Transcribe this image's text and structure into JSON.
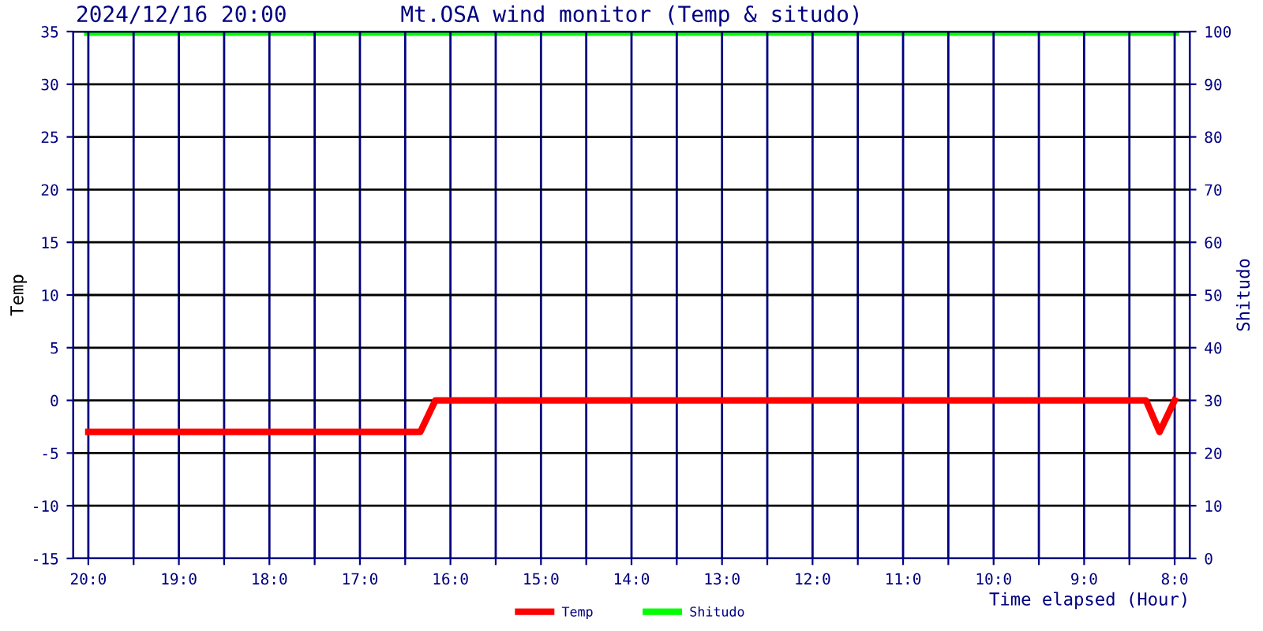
{
  "chart_data": {
    "type": "line",
    "title": "Mt.OSA wind monitor (Temp & situdo)",
    "subtitle": "2024/12/16 20:00",
    "xlabel": "Time elapsed (Hour)",
    "ylabel": "Temp",
    "y2label": "Shitudo",
    "xlim": [
      "2024-12-16T20:10",
      "2024-12-16T07:50"
    ],
    "xticks": [
      {
        "value": "2024-12-16T20:00",
        "label": "20:0"
      },
      {
        "value": "2024-12-16T19:30",
        "label": null
      },
      {
        "value": "2024-12-16T19:00",
        "label": "19:0"
      },
      {
        "value": "2024-12-16T18:30",
        "label": null
      },
      {
        "value": "2024-12-16T18:00",
        "label": "18:0"
      },
      {
        "value": "2024-12-16T17:30",
        "label": null
      },
      {
        "value": "2024-12-16T17:00",
        "label": "17:0"
      },
      {
        "value": "2024-12-16T16:30",
        "label": null
      },
      {
        "value": "2024-12-16T16:00",
        "label": "16:0"
      },
      {
        "value": "2024-12-16T15:30",
        "label": null
      },
      {
        "value": "2024-12-16T15:00",
        "label": "15:0"
      },
      {
        "value": "2024-12-16T14:30",
        "label": null
      },
      {
        "value": "2024-12-16T14:00",
        "label": "14:0"
      },
      {
        "value": "2024-12-16T13:30",
        "label": null
      },
      {
        "value": "2024-12-16T13:00",
        "label": "13:0"
      },
      {
        "value": "2024-12-16T12:30",
        "label": null
      },
      {
        "value": "2024-12-16T12:00",
        "label": "12:0"
      },
      {
        "value": "2024-12-16T11:30",
        "label": null
      },
      {
        "value": "2024-12-16T11:00",
        "label": "11:0"
      },
      {
        "value": "2024-12-16T10:30",
        "label": null
      },
      {
        "value": "2024-12-16T10:00",
        "label": "10:0"
      },
      {
        "value": "2024-12-16T09:30",
        "label": null
      },
      {
        "value": "2024-12-16T09:00",
        "label": "9:0"
      },
      {
        "value": "2024-12-16T08:30",
        "label": null
      },
      {
        "value": "2024-12-16T08:00",
        "label": "8:0"
      }
    ],
    "ylim": [
      -15,
      35
    ],
    "yticks": [
      -15,
      -10,
      -5,
      0,
      5,
      10,
      15,
      20,
      25,
      30,
      35
    ],
    "y2lim": [
      0,
      100
    ],
    "y2ticks": [
      0,
      10,
      20,
      30,
      40,
      50,
      60,
      70,
      80,
      90,
      100
    ],
    "series": [
      {
        "name": "Temp",
        "color": "#ff0000",
        "x": [
          "2024-12-16T20:00",
          "2024-12-16T16:20",
          "2024-12-16T16:10",
          "2024-12-16T08:19",
          "2024-12-16T08:10",
          "2024-12-16T08:00"
        ],
        "values": [
          -3,
          -3,
          0,
          0,
          -3,
          0
        ]
      },
      {
        "name": "Shitudo",
        "color": "#00ff00",
        "axis": "y2",
        "x": [
          "2024-12-16T20:00",
          "2024-12-16T08:00"
        ],
        "values": [
          100,
          100
        ]
      }
    ],
    "grid": true,
    "legend": "bottom",
    "marker": "none",
    "line_style": "solid"
  }
}
